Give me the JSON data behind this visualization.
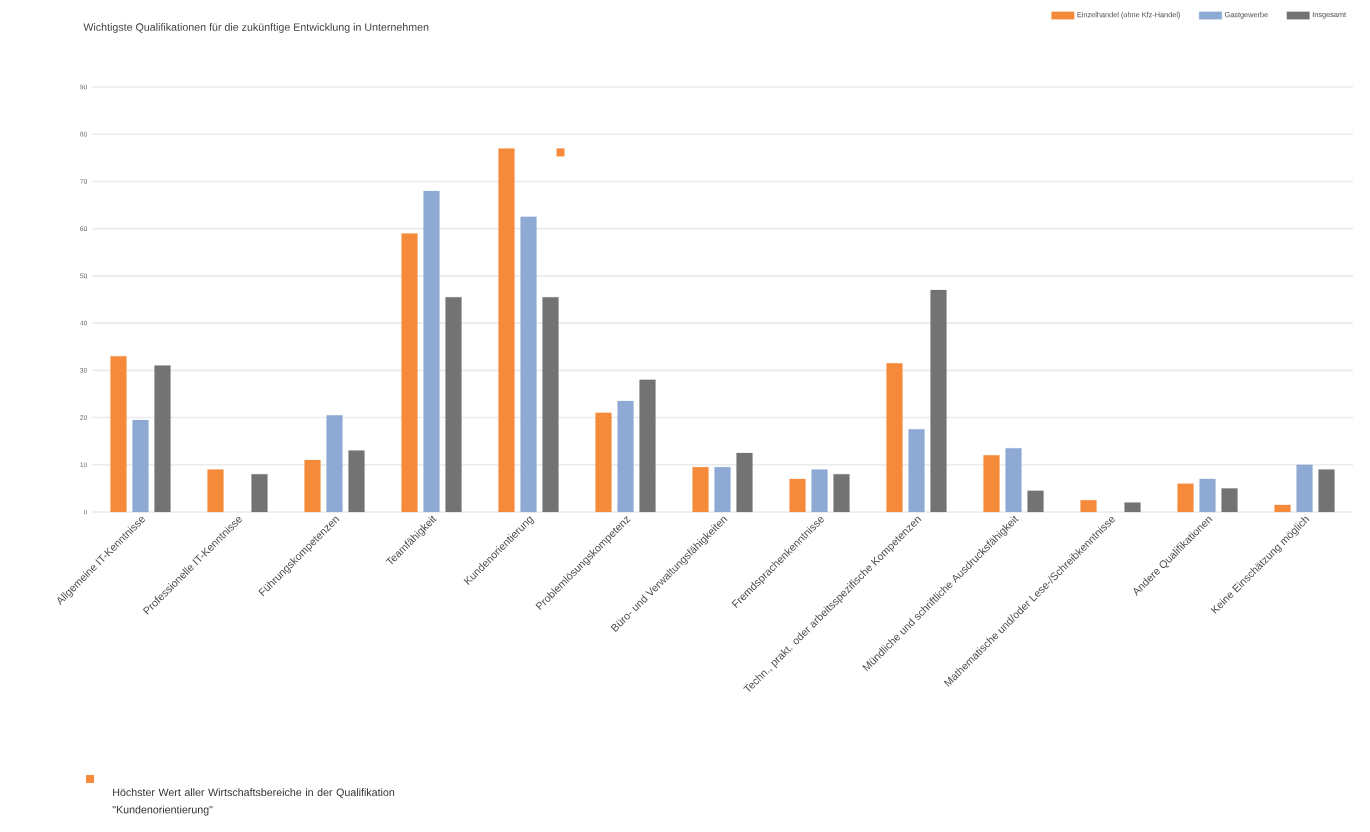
{
  "chart_data": {
    "type": "bar",
    "title": "Wichtigste Qualifikationen für die zukünftige Entwicklung in Unternehmen",
    "categories": [
      "Allgemeine IT-Kenntnisse",
      "Professionelle IT-Kenntnisse",
      "Führungskompetenzen",
      "Teamfähigkeit",
      "Kundenorientierung",
      "Problemlösungskompetenz",
      "Büro- und Verwaltungsfähigkeiten",
      "Fremdsprachenkenntnisse",
      "Techn., prakt. oder arbeitsspezifische Kompetenzen",
      "Mündliche und schriftliche Ausdrucksfähigkeit",
      "Mathematische und/oder Lese-/Schreibkenntnisse",
      "Andere Qualifikationen",
      "Keine Einschätzung möglich"
    ],
    "series": [
      {
        "name": "Einzelhandel (ohne Kfz-Handel)",
        "color": "#f58a3a",
        "values": [
          33,
          9,
          11,
          59,
          77,
          21,
          9.5,
          7,
          31.5,
          12,
          2.5,
          6,
          1.5
        ]
      },
      {
        "name": "Gastgewerbe",
        "color": "#8eaad4",
        "values": [
          19.5,
          null,
          20.5,
          68,
          62.5,
          23.5,
          9.5,
          9,
          17.5,
          13.5,
          null,
          7,
          10
        ]
      },
      {
        "name": "Insgesamt",
        "color": "#737373",
        "values": [
          31,
          8,
          13,
          45.5,
          45.5,
          28,
          12.5,
          8,
          47,
          4.5,
          2,
          5,
          9
        ]
      }
    ],
    "ylim": [
      0,
      90
    ],
    "yticks": [
      0,
      10,
      20,
      30,
      40,
      50,
      60,
      70,
      80,
      90
    ],
    "grid": "y",
    "legend": "top right",
    "annotations": [
      "Höchster Wert aller Wirtschaftsbereiche in der Qualifikation \"Kundenorientierung\""
    ]
  }
}
